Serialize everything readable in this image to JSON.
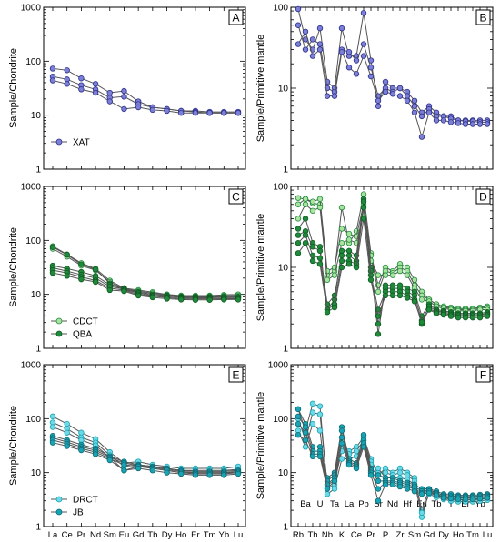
{
  "colors": {
    "blue_fill": "#7b7fd6",
    "blue_stroke": "#2c2f8a",
    "light_green": "#a9e3a0",
    "dark_green": "#1e8a3a",
    "light_cyan": "#6ad9e8",
    "dark_cyan": "#1aa3b3",
    "line": "#555555"
  },
  "chart_data": [
    {
      "panel": "A",
      "type": "line",
      "ylabel": "Sample/Chondrite",
      "yscale": "log",
      "ylim": [
        1,
        1000
      ],
      "yticks": [
        "1",
        "10",
        "100",
        "1000"
      ],
      "x_tick_labels": [],
      "categories": [
        "La",
        "Ce",
        "Pr",
        "Nd",
        "Sm",
        "Eu",
        "Gd",
        "Tb",
        "Dy",
        "Ho",
        "Er",
        "Tm",
        "Yb",
        "Lu"
      ],
      "legend": [
        {
          "name": "XAT",
          "style": "blue"
        }
      ],
      "series": [
        {
          "style": "blue",
          "values": [
            73,
            68,
            48,
            38,
            26,
            28,
            18,
            14,
            13,
            12,
            12,
            11.5,
            11.5,
            11.5
          ]
        },
        {
          "style": "blue",
          "values": [
            52,
            46,
            36,
            30,
            21,
            22,
            16,
            14,
            13,
            12,
            11.5,
            11,
            11,
            11
          ]
        },
        {
          "style": "blue",
          "values": [
            44,
            38,
            30,
            26,
            18,
            13,
            14,
            12.5,
            12,
            11,
            11,
            11,
            11,
            11
          ]
        }
      ]
    },
    {
      "panel": "B",
      "type": "line",
      "ylabel": "Sample/Primitive mantle",
      "yscale": "log",
      "ylim": [
        1,
        100
      ],
      "yticks": [
        "1",
        "10",
        "100"
      ],
      "x_tick_labels": [],
      "categories": [
        "Rb",
        "Ba",
        "Th",
        "U",
        "Nb",
        "Ta",
        "K",
        "La",
        "Ce",
        "Pb",
        "Pr",
        "Sr",
        "P",
        "Nd",
        "Zr",
        "Hf",
        "Sm",
        "Eu",
        "Gd",
        "Tb",
        "Dy",
        "Y",
        "Ho",
        "Er",
        "Tm",
        "Yb",
        "Lu"
      ],
      "legend": [],
      "series": [
        {
          "style": "blue",
          "values": [
            95,
            40,
            30,
            55,
            12,
            10,
            55,
            25,
            25,
            85,
            22,
            6,
            12,
            10,
            10,
            9,
            7,
            5,
            6,
            5,
            4.5,
            4.5,
            4,
            4,
            4,
            4,
            4
          ]
        },
        {
          "style": "blue",
          "values": [
            60,
            30,
            40,
            35,
            10,
            9,
            30,
            28,
            22,
            35,
            18,
            8,
            10,
            9,
            10,
            8,
            6,
            4.5,
            5.5,
            4.5,
            4.5,
            4.2,
            4,
            3.9,
            3.9,
            3.8,
            3.8
          ]
        },
        {
          "style": "blue",
          "values": [
            35,
            50,
            25,
            30,
            8,
            8,
            28,
            18,
            15,
            25,
            14,
            7,
            9,
            8.5,
            8,
            7,
            5,
            2.5,
            5,
            4,
            4,
            3.8,
            3.7,
            3.6,
            3.6,
            3.6,
            3.6
          ]
        }
      ]
    },
    {
      "panel": "C",
      "type": "line",
      "ylabel": "Sample/Chondrite",
      "yscale": "log",
      "ylim": [
        1,
        1000
      ],
      "yticks": [
        "1",
        "10",
        "100",
        "1000"
      ],
      "x_tick_labels": [],
      "categories": [
        "La",
        "Ce",
        "Pr",
        "Nd",
        "Sm",
        "Eu",
        "Gd",
        "Tb",
        "Dy",
        "Ho",
        "Er",
        "Tm",
        "Yb",
        "Lu"
      ],
      "legend": [
        {
          "name": "CDCT",
          "style": "light_green"
        },
        {
          "name": "QBA",
          "style": "dark_green"
        }
      ],
      "series": [
        {
          "style": "light_green",
          "values": [
            78,
            55,
            38,
            30,
            18,
            13,
            12,
            11,
            10,
            9.5,
            9.5,
            9.5,
            9.8,
            10
          ]
        },
        {
          "style": "light_green",
          "values": [
            70,
            50,
            34,
            28,
            17,
            12.5,
            11.5,
            10.5,
            9.8,
            9.2,
            9.2,
            9.3,
            9.4,
            9.5
          ]
        },
        {
          "style": "dark_green",
          "values": [
            75,
            54,
            36,
            29,
            16,
            12,
            11,
            10,
            9.5,
            9,
            9,
            9,
            9,
            9
          ]
        },
        {
          "style": "dark_green",
          "values": [
            34,
            30,
            26,
            22,
            15,
            13,
            11,
            10,
            9.5,
            9,
            8.8,
            8.8,
            9,
            9
          ]
        },
        {
          "style": "dark_green",
          "values": [
            31,
            27,
            23,
            20,
            14,
            12.5,
            10.5,
            9.5,
            9,
            8.7,
            8.5,
            8.5,
            8.6,
            8.6
          ]
        },
        {
          "style": "dark_green",
          "values": [
            28,
            25,
            21,
            18,
            13,
            12,
            10,
            9.2,
            8.7,
            8.3,
            8.2,
            8.2,
            8.3,
            8.3
          ]
        },
        {
          "style": "dark_green",
          "values": [
            25,
            22,
            19,
            17,
            12,
            11.5,
            9.5,
            8.8,
            8.3,
            8,
            7.9,
            7.9,
            8,
            8
          ]
        }
      ]
    },
    {
      "panel": "D",
      "type": "line",
      "ylabel": "Sample/Primitive mantle",
      "yscale": "log",
      "ylim": [
        1,
        100
      ],
      "yticks": [
        "1",
        "10",
        "100"
      ],
      "x_tick_labels": [],
      "categories": [
        "Rb",
        "Ba",
        "Th",
        "U",
        "Nb",
        "Ta",
        "K",
        "La",
        "Ce",
        "Pb",
        "Pr",
        "Sr",
        "P",
        "Nd",
        "Zr",
        "Hf",
        "Sm",
        "Eu",
        "Gd",
        "Tb",
        "Dy",
        "Y",
        "Ho",
        "Er",
        "Tm",
        "Yb",
        "Lu"
      ],
      "legend": [],
      "series": [
        {
          "style": "light_green",
          "values": [
            72,
            70,
            62,
            60,
            8,
            9,
            55,
            20,
            28,
            80,
            15,
            6,
            10,
            9,
            11,
            10,
            7,
            5,
            4,
            3.5,
            3.3,
            3.2,
            3.1,
            3.1,
            3.1,
            3.2,
            3.3
          ]
        },
        {
          "style": "light_green",
          "values": [
            60,
            70,
            65,
            70,
            9,
            10,
            30,
            26,
            24,
            60,
            14,
            5,
            9,
            8.5,
            10,
            9,
            6,
            4.5,
            4,
            3.5,
            3.2,
            3.1,
            3,
            3,
            3,
            3.1,
            3.2
          ]
        },
        {
          "style": "light_green",
          "values": [
            40,
            60,
            50,
            55,
            7,
            8,
            20,
            22,
            20,
            45,
            12,
            8,
            8,
            8,
            9,
            8,
            5.5,
            4,
            3.8,
            3.3,
            3.1,
            3,
            2.9,
            2.9,
            2.9,
            3,
            3
          ]
        },
        {
          "style": "dark_green",
          "values": [
            30,
            40,
            20,
            18,
            3,
            4,
            16,
            16,
            14,
            70,
            10,
            1.5,
            6,
            6,
            6,
            5.5,
            5,
            2.5,
            3.5,
            3,
            2.9,
            2.8,
            2.7,
            2.7,
            2.7,
            2.7,
            2.8
          ]
        },
        {
          "style": "dark_green",
          "values": [
            25,
            28,
            18,
            16,
            3.5,
            4.5,
            14,
            14,
            12,
            65,
            9,
            2,
            5.5,
            5.5,
            5.5,
            5,
            4.5,
            2.2,
            3.3,
            2.9,
            2.8,
            2.7,
            2.6,
            2.6,
            2.6,
            2.6,
            2.7
          ]
        },
        {
          "style": "dark_green",
          "values": [
            20,
            25,
            14,
            13,
            3,
            3.5,
            12,
            12,
            11,
            55,
            8,
            3,
            5,
            5,
            5,
            4.5,
            4,
            2,
            3.1,
            2.8,
            2.7,
            2.6,
            2.5,
            2.5,
            2.5,
            2.5,
            2.6
          ]
        },
        {
          "style": "dark_green",
          "values": [
            15,
            20,
            12,
            11,
            2.8,
            3.2,
            10,
            11,
            10,
            40,
            7,
            2.5,
            4.5,
            4.5,
            4.5,
            4.2,
            3.8,
            2.1,
            3,
            2.7,
            2.6,
            2.5,
            2.4,
            2.4,
            2.4,
            2.4,
            2.5
          ]
        }
      ]
    },
    {
      "panel": "E",
      "type": "line",
      "ylabel": "Sample/Chondrite",
      "yscale": "log",
      "ylim": [
        1,
        1000
      ],
      "yticks": [
        "1",
        "10",
        "100",
        "1000"
      ],
      "categories": [
        "La",
        "Ce",
        "Pr",
        "Nd",
        "Sm",
        "Eu",
        "Gd",
        "Tb",
        "Dy",
        "Ho",
        "Er",
        "Tm",
        "Yb",
        "Lu"
      ],
      "x_tick_labels": [
        "La",
        "Ce",
        "Pr",
        "Nd",
        "Sm",
        "Eu",
        "Gd",
        "Tb",
        "Dy",
        "Ho",
        "Er",
        "Tm",
        "Yb",
        "Lu"
      ],
      "legend": [
        {
          "name": "DRCT",
          "style": "light_cyan"
        },
        {
          "name": "JB",
          "style": "dark_cyan"
        }
      ],
      "series": [
        {
          "style": "light_cyan",
          "values": [
            110,
            80,
            55,
            42,
            24,
            15,
            16,
            14,
            13,
            12,
            12,
            12,
            12,
            13
          ]
        },
        {
          "style": "light_cyan",
          "values": [
            85,
            65,
            45,
            36,
            21,
            13,
            14,
            13,
            12,
            11,
            11,
            11,
            11,
            11.5
          ]
        },
        {
          "style": "light_cyan",
          "values": [
            70,
            55,
            40,
            32,
            19,
            11,
            13,
            12,
            11,
            10,
            10,
            10,
            10,
            10
          ]
        },
        {
          "style": "dark_cyan",
          "values": [
            48,
            40,
            33,
            28,
            20,
            16,
            14,
            13,
            12,
            11,
            10.5,
            10.5,
            10.5,
            11
          ]
        },
        {
          "style": "dark_cyan",
          "values": [
            44,
            37,
            30,
            26,
            19,
            15,
            13.5,
            12.5,
            11.5,
            10.5,
            10,
            10,
            10,
            10.5
          ]
        },
        {
          "style": "dark_cyan",
          "values": [
            40,
            34,
            28,
            24,
            18,
            14,
            13,
            12,
            11,
            10,
            9.5,
            9.5,
            9.5,
            10
          ]
        },
        {
          "style": "dark_cyan",
          "values": [
            36,
            31,
            26,
            22,
            17,
            11,
            12,
            11,
            10,
            9.5,
            9,
            9,
            9,
            9.5
          ]
        }
      ]
    },
    {
      "panel": "F",
      "type": "line",
      "ylabel": "Sample/Primitive mantle",
      "yscale": "log",
      "ylim": [
        1,
        1000
      ],
      "yticks": [
        "1",
        "10",
        "100",
        "1000"
      ],
      "categories": [
        "Rb",
        "Ba",
        "Th",
        "U",
        "Nb",
        "Ta",
        "K",
        "La",
        "Ce",
        "Pb",
        "Pr",
        "Sr",
        "P",
        "Nd",
        "Zr",
        "Hf",
        "Sm",
        "Eu",
        "Gd",
        "Tb",
        "Dy",
        "Y",
        "Ho",
        "Er",
        "Tm",
        "Yb",
        "Lu"
      ],
      "x_tick_labels": [
        "Rb",
        "Ba",
        "Th",
        "U",
        "Nb",
        "Ta",
        "K",
        "La",
        "Ce",
        "Pb",
        "Pr",
        "Sr",
        "P",
        "Nd",
        "Zr",
        "Hf",
        "Sm",
        "Eu",
        "Gd",
        "Tb",
        "Dy",
        "Y",
        "Ho",
        "Er",
        "Tm",
        "Yb",
        "Lu"
      ],
      "legend": [],
      "series": [
        {
          "style": "light_cyan",
          "values": [
            150,
            60,
            190,
            170,
            5,
            6,
            30,
            25,
            30,
            45,
            18,
            9,
            12,
            10,
            12,
            10,
            8,
            2,
            5,
            4,
            3.5,
            3.3,
            3.2,
            3.2,
            3.2,
            3.3,
            3.4
          ]
        },
        {
          "style": "light_cyan",
          "values": [
            100,
            40,
            130,
            120,
            6,
            7,
            25,
            22,
            25,
            40,
            16,
            10,
            10,
            9,
            10,
            9,
            7,
            1.5,
            4.5,
            3.8,
            3.4,
            3.2,
            3.1,
            3.1,
            3.1,
            3.2,
            3.3
          ]
        },
        {
          "style": "light_cyan",
          "values": [
            60,
            30,
            80,
            60,
            4,
            5,
            18,
            18,
            20,
            30,
            14,
            12,
            8,
            8,
            8,
            7.5,
            6,
            1.8,
            4,
            3.5,
            3.2,
            3,
            2.9,
            2.9,
            2.9,
            3,
            3.1
          ]
        },
        {
          "style": "dark_cyan",
          "values": [
            150,
            80,
            30,
            30,
            8,
            10,
            70,
            18,
            15,
            50,
            12,
            9,
            8,
            8,
            7,
            6.5,
            6,
            5,
            5,
            4.5,
            4,
            4,
            3.8,
            3.8,
            3.8,
            3.9,
            4
          ]
        },
        {
          "style": "dark_cyan",
          "values": [
            110,
            70,
            25,
            25,
            7,
            9,
            60,
            16,
            14,
            40,
            11,
            7,
            7,
            7,
            6.5,
            6,
            5.5,
            4.5,
            4.8,
            4.2,
            3.8,
            3.7,
            3.6,
            3.6,
            3.6,
            3.7,
            3.8
          ]
        },
        {
          "style": "dark_cyan",
          "values": [
            80,
            55,
            22,
            22,
            6,
            8,
            45,
            15,
            13,
            35,
            10,
            5,
            6.5,
            6.5,
            6,
            5.5,
            5,
            4.2,
            4.5,
            4,
            3.6,
            3.5,
            3.4,
            3.4,
            3.4,
            3.5,
            3.6
          ]
        },
        {
          "style": "dark_cyan",
          "values": [
            50,
            40,
            20,
            20,
            5,
            7,
            35,
            14,
            12,
            30,
            9,
            3,
            6,
            6,
            5.5,
            5,
            4.5,
            4,
            4.2,
            3.8,
            3.4,
            3.3,
            3.2,
            3.2,
            3.2,
            3.3,
            3.4
          ]
        }
      ]
    }
  ]
}
